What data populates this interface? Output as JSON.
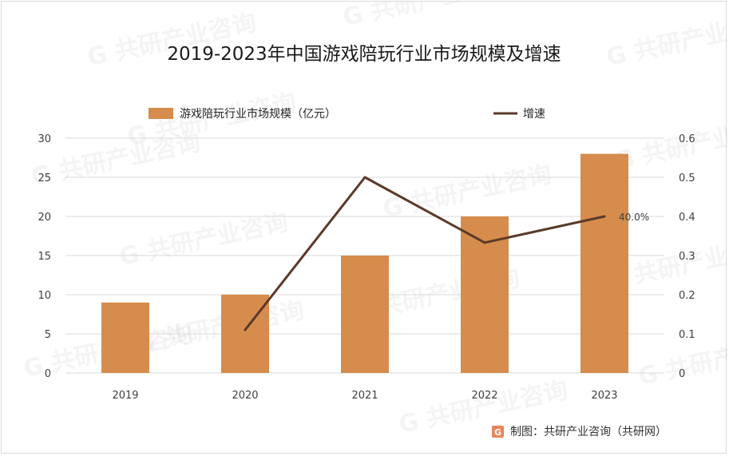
{
  "chart_data": {
    "type": "bar",
    "title": "2019-2023年中国游戏陪玩行业市场规模及增速",
    "categories": [
      "2019",
      "2020",
      "2021",
      "2022",
      "2023"
    ],
    "series": [
      {
        "name": "游戏陪玩行业市场规模（亿元）",
        "type": "bar",
        "axis": "left",
        "color": "#d68c4c",
        "values": [
          9,
          10,
          15,
          20,
          28
        ]
      },
      {
        "name": "增速",
        "type": "line",
        "axis": "right",
        "color": "#5b3a29",
        "values": [
          null,
          0.11,
          0.5,
          0.333,
          0.4
        ]
      }
    ],
    "y_left": {
      "min": 0,
      "max": 30,
      "ticks": [
        "0",
        "5",
        "10",
        "15",
        "20",
        "25",
        "30"
      ]
    },
    "y_right": {
      "min": 0,
      "max": 0.6,
      "ticks": [
        "0",
        "0.1",
        "0.2",
        "0.3",
        "0.4",
        "0.5",
        "0.6"
      ]
    },
    "grid": true,
    "legend_position": "top",
    "annotations": [
      {
        "category": "2023",
        "series": "增速",
        "text": "40.0%"
      }
    ]
  },
  "credit": {
    "text": "制图：共研产业咨询（共研网）",
    "icon": "brand-logo-icon",
    "logo_letter": "G",
    "logo_color": "#e8845a"
  },
  "watermark": {
    "text": "G 共研产业咨询"
  }
}
